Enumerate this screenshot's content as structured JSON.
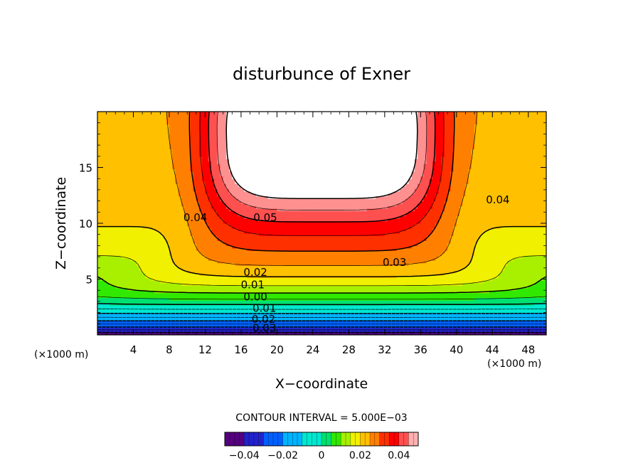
{
  "chart_data": {
    "type": "contour",
    "title": "disturbunce of Exner",
    "xlabel": "X−coordinate",
    "ylabel": "Z−coordinate",
    "x_unit": "(×1000 m)",
    "y_unit": "(×1000 m)",
    "xlim": [
      0,
      50
    ],
    "ylim": [
      0,
      20
    ],
    "x_ticks": [
      4,
      8,
      12,
      16,
      20,
      24,
      28,
      32,
      36,
      40,
      44,
      48
    ],
    "y_ticks": [
      5,
      10,
      15
    ],
    "contour_interval_text": "CONTOUR INTERVAL = 5.000E−03",
    "contour_interval": 0.005,
    "levels_min": -0.045,
    "levels_max": 0.05,
    "negative_contours": "dashed",
    "contour_labels": [
      {
        "text": "0.05",
        "x": 18.7,
        "z": 10.5
      },
      {
        "text": "0.04",
        "x": 10.9,
        "z": 10.5
      },
      {
        "text": "0.04",
        "x": 44.6,
        "z": 12.1
      },
      {
        "text": "0.03",
        "x": 33.1,
        "z": 6.5
      },
      {
        "text": "0.02",
        "x": 17.6,
        "z": 5.6
      },
      {
        "text": "0.01",
        "x": 17.3,
        "z": 4.5
      },
      {
        "text": "0.00",
        "x": 17.6,
        "z": 3.4
      },
      {
        "text": "0.01",
        "x": 18.6,
        "z": 2.4
      },
      {
        "text": "0.02",
        "x": 18.5,
        "z": 1.4
      },
      {
        "text": "0.03",
        "x": 18.6,
        "z": 0.6
      }
    ],
    "colorbar": {
      "min": -0.05,
      "max": 0.05,
      "tick_labels": [
        "−0.04",
        "−0.02",
        "0",
        "0.02",
        "0.04"
      ],
      "tick_values": [
        -0.04,
        -0.02,
        0,
        0.02,
        0.04
      ]
    },
    "colors": [
      "#55007f",
      "#2222cc",
      "#0060ff",
      "#00b4ff",
      "#00e8d0",
      "#00e070",
      "#30e800",
      "#a8f000",
      "#f0f000",
      "#ffc000",
      "#ff8000",
      "#ff3000",
      "#ff0000",
      "#ff5050",
      "#ff9090"
    ]
  }
}
